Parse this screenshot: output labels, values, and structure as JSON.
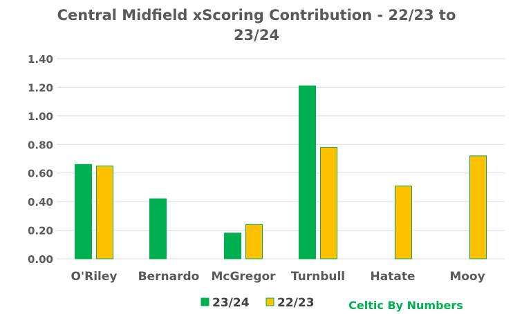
{
  "chart_data": {
    "type": "bar",
    "title_lines": [
      "Central Midfield xScoring Contribution - 22/23 to",
      "23/24"
    ],
    "categories": [
      "O'Riley",
      "Bernardo",
      "McGregor",
      "Turnbull",
      "Hatate",
      "Mooy"
    ],
    "series": [
      {
        "name": "23/24",
        "color": "#00B050",
        "values": [
          0.66,
          0.42,
          0.18,
          1.21,
          null,
          null
        ]
      },
      {
        "name": "22/23",
        "color": "#FFC000",
        "values": [
          0.65,
          null,
          0.24,
          0.78,
          0.51,
          0.72
        ]
      }
    ],
    "ylim": [
      0,
      1.4
    ],
    "yticks": [
      "0.00",
      "0.20",
      "0.40",
      "0.60",
      "0.80",
      "1.00",
      "1.20",
      "1.40"
    ],
    "grid": true,
    "legend_position": "bottom",
    "bar_outline_color": "#00B050",
    "grid_color": "#D9D9D9",
    "credit": {
      "text": "Celtic By Numbers",
      "color": "#00B050"
    }
  }
}
